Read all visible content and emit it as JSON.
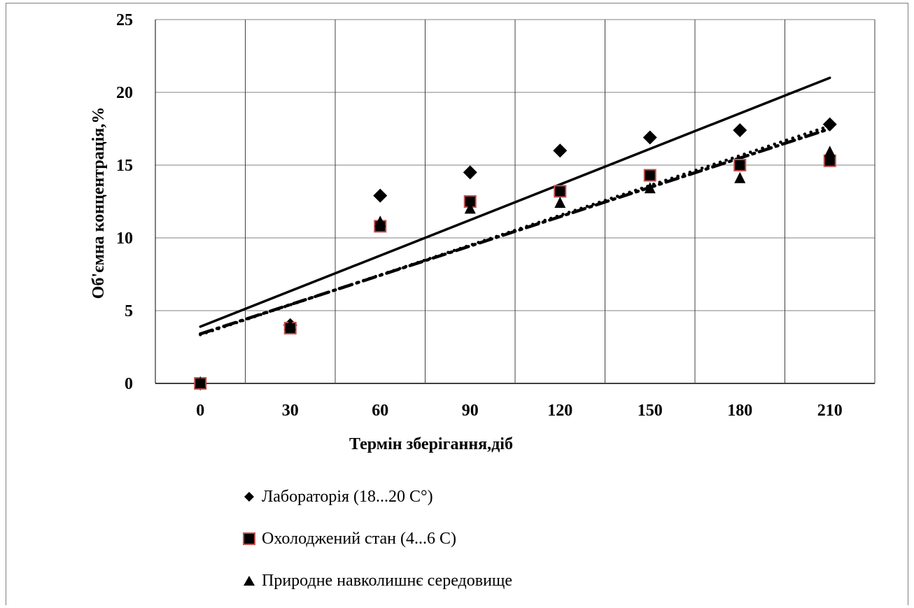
{
  "chart_data": {
    "type": "scatter",
    "xlabel": "Термін зберігання,діб",
    "ylabel": "Об'ємна концентрація,%",
    "categories": [
      "0",
      "30",
      "60",
      "90",
      "120",
      "150",
      "180",
      "210"
    ],
    "x": [
      0,
      30,
      60,
      90,
      120,
      150,
      180,
      210
    ],
    "ylim": [
      0,
      25
    ],
    "yticks": [
      0,
      5,
      10,
      15,
      20,
      25
    ],
    "grid": {
      "horizontal": true,
      "vertical": true
    },
    "legend_position": "bottom",
    "series": [
      {
        "name": "Лабораторія (18...20 C°)",
        "marker": "diamond",
        "color": "#000000",
        "values": [
          0,
          4.0,
          12.9,
          14.5,
          16.0,
          16.9,
          17.4,
          17.8
        ]
      },
      {
        "name": "Охолоджений стан (4...6 C)",
        "marker": "square",
        "color": "#000000",
        "edge_color": "#c0504d",
        "values": [
          0,
          3.8,
          10.8,
          12.5,
          13.2,
          14.3,
          15.0,
          15.3
        ]
      },
      {
        "name": "Природне навколишнє середовище",
        "marker": "triangle",
        "color": "#000000",
        "values": [
          0,
          4.0,
          11.1,
          12.0,
          12.4,
          13.4,
          14.1,
          15.9
        ]
      }
    ],
    "trendlines": [
      {
        "style": "solid",
        "color": "#000000",
        "start": [
          0,
          3.9
        ],
        "end": [
          210,
          21.0
        ]
      },
      {
        "style": "dash-dot",
        "color": "#000000",
        "start": [
          0,
          3.4
        ],
        "end": [
          210,
          17.5
        ]
      },
      {
        "style": "dotted",
        "color": "#000000",
        "start": [
          0,
          3.35
        ],
        "end": [
          210,
          17.7
        ]
      }
    ]
  }
}
